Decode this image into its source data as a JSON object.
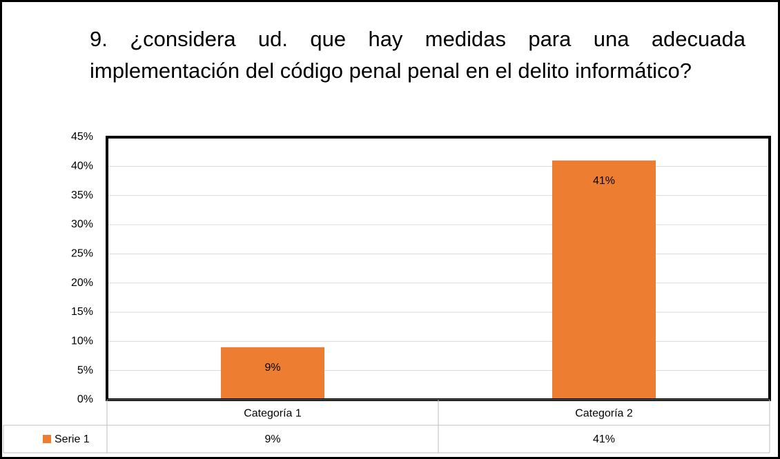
{
  "chart_data": {
    "type": "bar",
    "title": "9. ¿considera ud. que hay medidas para una adecuada implementación del código penal penal en el delito informático?",
    "categories": [
      "Categoría 1",
      "Categoría 2"
    ],
    "series": [
      {
        "name": "Serie 1",
        "color": "#ed7d31",
        "values": [
          9,
          41
        ],
        "value_labels": [
          "9%",
          "41%"
        ]
      }
    ],
    "ylim": [
      0,
      45
    ],
    "yticks": [
      {
        "value": 0,
        "label": "0%"
      },
      {
        "value": 5,
        "label": "5%"
      },
      {
        "value": 10,
        "label": "10%"
      },
      {
        "value": 15,
        "label": "15%"
      },
      {
        "value": 20,
        "label": "20%"
      },
      {
        "value": 25,
        "label": "25%"
      },
      {
        "value": 30,
        "label": "30%"
      },
      {
        "value": 35,
        "label": "35%"
      },
      {
        "value": 40,
        "label": "40%"
      },
      {
        "value": 45,
        "label": "45%"
      }
    ],
    "grid": true,
    "data_table": true
  }
}
